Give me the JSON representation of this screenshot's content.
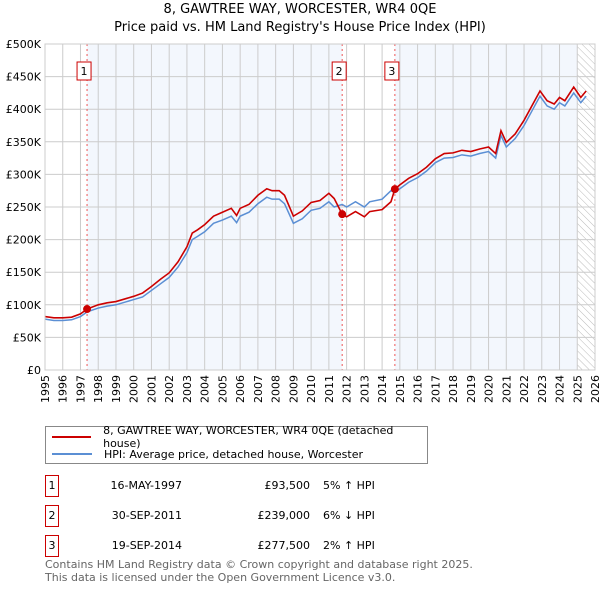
{
  "chart_data": {
    "type": "line",
    "title": "8, GAWTREE WAY, WORCESTER, WR4 0QE",
    "subtitle": "Price paid vs. HM Land Registry's House Price Index (HPI)",
    "xlim": [
      1995,
      2026
    ],
    "ylim": [
      0,
      500000
    ],
    "x_ticks": [
      "1995",
      "1996",
      "1997",
      "1998",
      "1999",
      "2000",
      "2001",
      "2002",
      "2003",
      "2004",
      "2005",
      "2006",
      "2007",
      "2008",
      "2009",
      "2010",
      "2011",
      "2012",
      "2013",
      "2014",
      "2015",
      "2016",
      "2017",
      "2018",
      "2019",
      "2020",
      "2021",
      "2022",
      "2023",
      "2024",
      "2025",
      "2026"
    ],
    "y_ticks": [
      {
        "v": 0,
        "label": "£0"
      },
      {
        "v": 50000,
        "label": "£50K"
      },
      {
        "v": 100000,
        "label": "£100K"
      },
      {
        "v": 150000,
        "label": "£150K"
      },
      {
        "v": 200000,
        "label": "£200K"
      },
      {
        "v": 250000,
        "label": "£250K"
      },
      {
        "v": 300000,
        "label": "£300K"
      },
      {
        "v": 350000,
        "label": "£350K"
      },
      {
        "v": 400000,
        "label": "£400K"
      },
      {
        "v": 450000,
        "label": "£450K"
      },
      {
        "v": 500000,
        "label": "£500K"
      }
    ],
    "grid": true,
    "series": [
      {
        "name": "8, GAWTREE WAY, WORCESTER, WR4 0QE (detached house)",
        "color": "#cc0000",
        "x": [
          1995,
          1995.5,
          1996,
          1996.5,
          1997,
          1997.37,
          1998,
          1998.5,
          1999,
          1999.5,
          2000,
          2000.5,
          2001,
          2001.5,
          2002,
          2002.5,
          2003,
          2003.3,
          2003.6,
          2004,
          2004.5,
          2005,
          2005.5,
          2005.8,
          2006,
          2006.5,
          2007,
          2007.5,
          2007.8,
          2008.2,
          2008.5,
          2009,
          2009.5,
          2010,
          2010.5,
          2011,
          2011.3,
          2011.75,
          2012,
          2012.5,
          2013,
          2013.3,
          2014,
          2014.5,
          2014.72,
          2015,
          2015.5,
          2016,
          2016.5,
          2017,
          2017.5,
          2018,
          2018.5,
          2019,
          2019.5,
          2020,
          2020.4,
          2020.7,
          2021,
          2021.5,
          2022,
          2022.5,
          2022.9,
          2023.3,
          2023.7,
          2024,
          2024.3,
          2024.8,
          2025.2,
          2025.5
        ],
        "y": [
          82,
          80,
          80,
          81,
          86,
          93.5,
          100,
          103,
          105,
          109,
          113,
          118,
          128,
          139,
          149,
          166,
          189,
          210,
          215,
          223,
          236,
          242,
          248,
          237,
          248,
          254,
          268,
          278,
          275,
          275,
          268,
          236,
          244,
          257,
          260,
          271,
          263,
          239,
          235,
          243,
          235,
          243,
          246,
          258,
          277.5,
          284,
          294,
          301,
          311,
          324,
          332,
          333,
          337,
          335,
          339,
          342,
          332,
          367,
          349,
          362,
          383,
          408,
          428,
          413,
          408,
          418,
          413,
          434,
          418,
          428
        ]
      },
      {
        "name": "HPI: Average price, detached house, Worcester",
        "color": "#5b8fd4",
        "x": [
          1995,
          1995.5,
          1996,
          1996.5,
          1997,
          1997.37,
          1998,
          1998.5,
          1999,
          1999.5,
          2000,
          2000.5,
          2001,
          2001.5,
          2002,
          2002.5,
          2003,
          2003.3,
          2003.6,
          2004,
          2004.5,
          2005,
          2005.5,
          2005.8,
          2006,
          2006.5,
          2007,
          2007.5,
          2007.8,
          2008.2,
          2008.5,
          2009,
          2009.5,
          2010,
          2010.5,
          2011,
          2011.3,
          2011.75,
          2012,
          2012.5,
          2013,
          2013.3,
          2014,
          2014.5,
          2014.72,
          2015,
          2015.5,
          2016,
          2016.5,
          2017,
          2017.5,
          2018,
          2018.5,
          2019,
          2019.5,
          2020,
          2020.4,
          2020.7,
          2021,
          2021.5,
          2022,
          2022.5,
          2022.9,
          2023.3,
          2023.7,
          2024,
          2024.3,
          2024.8,
          2025.2,
          2025.5
        ],
        "y": [
          78,
          76,
          76,
          77,
          82,
          89,
          95,
          98,
          100,
          104,
          108,
          112,
          122,
          132,
          142,
          158,
          180,
          200,
          205,
          212,
          225,
          230,
          236,
          226,
          236,
          242,
          255,
          265,
          262,
          262,
          255,
          225,
          232,
          245,
          248,
          258,
          250,
          254,
          250,
          258,
          250,
          258,
          262,
          275,
          272,
          278,
          288,
          295,
          305,
          318,
          325,
          326,
          330,
          328,
          332,
          335,
          325,
          360,
          342,
          355,
          375,
          400,
          420,
          405,
          400,
          410,
          405,
          425,
          410,
          420
        ]
      }
    ],
    "y_units": "thousands GBP",
    "sales": [
      {
        "n": "1",
        "x": 1997.37,
        "y": 93.5
      },
      {
        "n": "2",
        "x": 2011.75,
        "y": 239
      },
      {
        "n": "3",
        "x": 2014.72,
        "y": 277.5
      }
    ],
    "data_end": 2025.0,
    "legend_placement": "below"
  },
  "table": [
    {
      "n": "1",
      "date": "16-MAY-1997",
      "price": "£93,500",
      "hpi": "5% ↑ HPI"
    },
    {
      "n": "2",
      "date": "30-SEP-2011",
      "price": "£239,000",
      "hpi": "6% ↓ HPI"
    },
    {
      "n": "3",
      "date": "19-SEP-2014",
      "price": "£277,500",
      "hpi": "2% ↑ HPI"
    }
  ],
  "footer": [
    "Contains HM Land Registry data © Crown copyright and database right 2025.",
    "This data is licensed under the Open Government Licence v3.0."
  ]
}
